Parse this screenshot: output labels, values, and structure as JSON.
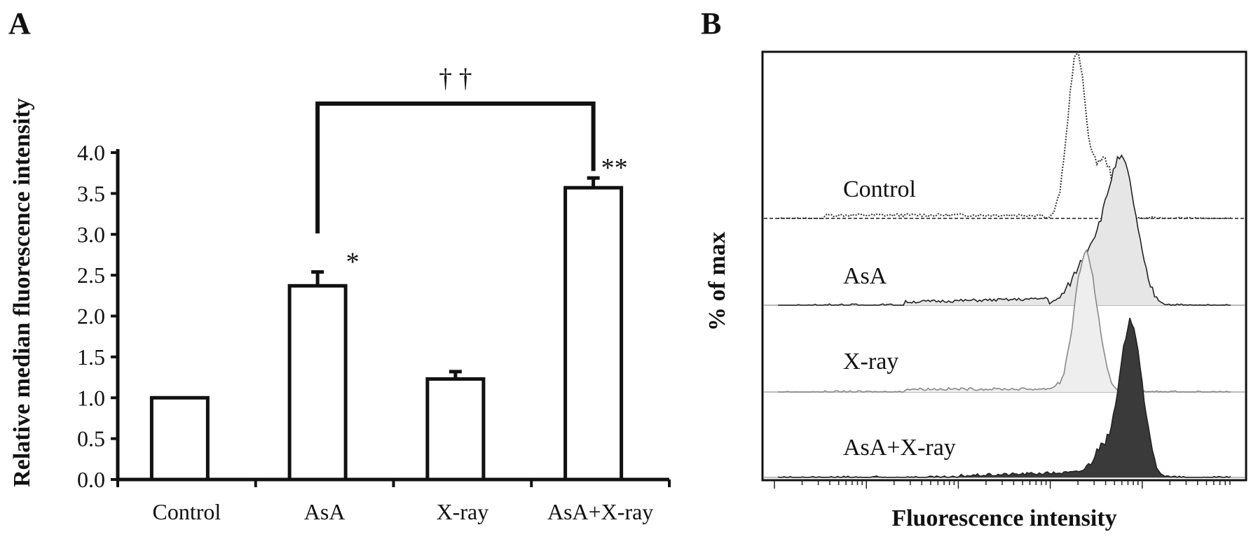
{
  "panels": {
    "a_label": "A",
    "b_label": "B"
  },
  "chart_data": [
    {
      "type": "bar",
      "categories": [
        "Control",
        "AsA",
        "X-ray",
        "AsA+X-ray"
      ],
      "values": [
        1.0,
        2.37,
        1.23,
        3.57
      ],
      "errors": [
        0.0,
        0.17,
        0.09,
        0.12
      ],
      "significance": [
        "",
        "*",
        "",
        "**"
      ],
      "comparison": {
        "from": "AsA",
        "to": "AsA+X-ray",
        "label": "† †"
      },
      "ylabel": "Relative median fluorescence intensity",
      "xlabel": "",
      "ylim": [
        0,
        4.0
      ],
      "yticks": [
        "0.0",
        "0.5",
        "1.0",
        "1.5",
        "2.0",
        "2.5",
        "3.0",
        "3.5",
        "4.0"
      ],
      "grid": false,
      "colors": {
        "bar_fill": "#ffffff",
        "bar_edge": "#111111"
      }
    },
    {
      "type": "area",
      "xlabel": "Fluorescence intensity",
      "ylabel": "% of max",
      "x_scale": "log",
      "series": [
        {
          "name": "Control",
          "style": "dotted",
          "fill": "none",
          "peak_position": 0.66
        },
        {
          "name": "AsA",
          "style": "solid-dark",
          "fill": "#e6e6e6",
          "peak_position": 0.76
        },
        {
          "name": "X-ray",
          "style": "solid-gray",
          "fill": "#eeeeee",
          "peak_position": 0.68
        },
        {
          "name": "AsA+X-ray",
          "style": "solid",
          "fill": "#3a3a3a",
          "peak_position": 0.78
        }
      ]
    }
  ]
}
